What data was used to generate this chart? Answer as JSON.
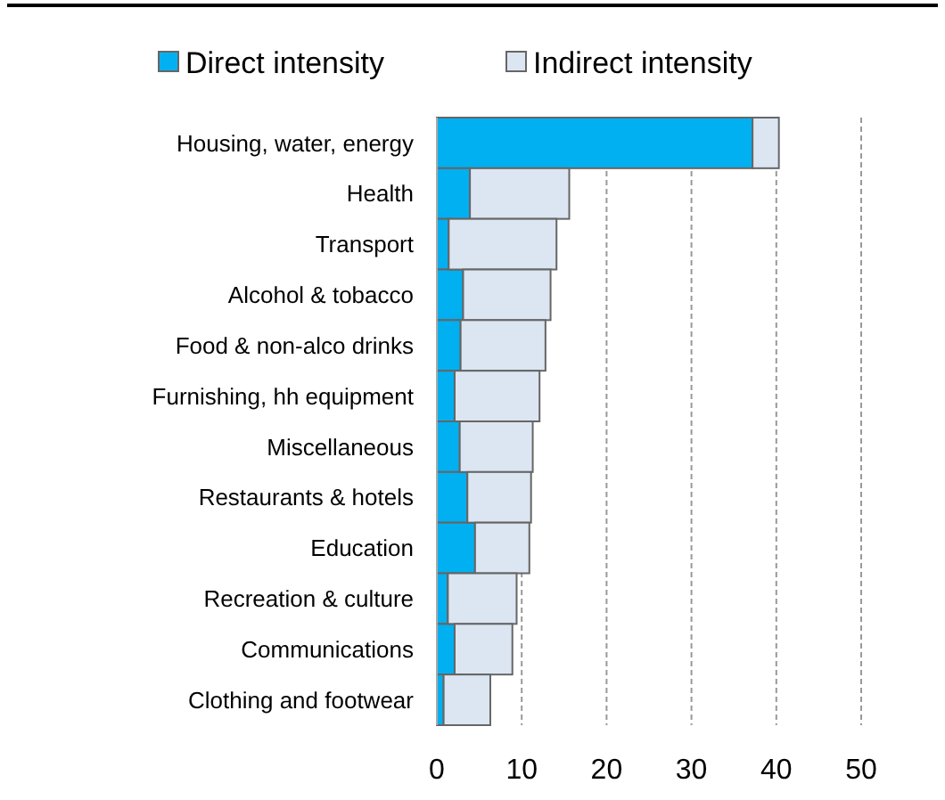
{
  "chart_data": {
    "type": "bar",
    "orientation": "horizontal",
    "stacked": true,
    "categories": [
      "Housing, water, energy",
      "Health",
      "Transport",
      "Alcohol & tobacco",
      "Food & non-alco drinks",
      "Furnishing, hh equipment",
      "Miscellaneous",
      "Restaurants & hotels",
      "Education",
      "Recreation & culture",
      "Communications",
      "Clothing and footwear"
    ],
    "series": [
      {
        "name": "Direct intensity",
        "color": "#00b0f0",
        "values": [
          37.2,
          3.9,
          1.4,
          3.1,
          2.8,
          2.1,
          2.7,
          3.6,
          4.5,
          1.3,
          2.1,
          0.8
        ]
      },
      {
        "name": "Indirect intensity",
        "color": "#dce6f2",
        "values": [
          3.1,
          11.7,
          12.7,
          10.3,
          10.0,
          10.0,
          8.6,
          7.5,
          6.4,
          8.1,
          6.8,
          5.5
        ]
      }
    ],
    "xlim": [
      0,
      50
    ],
    "xticks": [
      0,
      10,
      20,
      30,
      40,
      50
    ],
    "grid": "x",
    "legend": "top"
  }
}
